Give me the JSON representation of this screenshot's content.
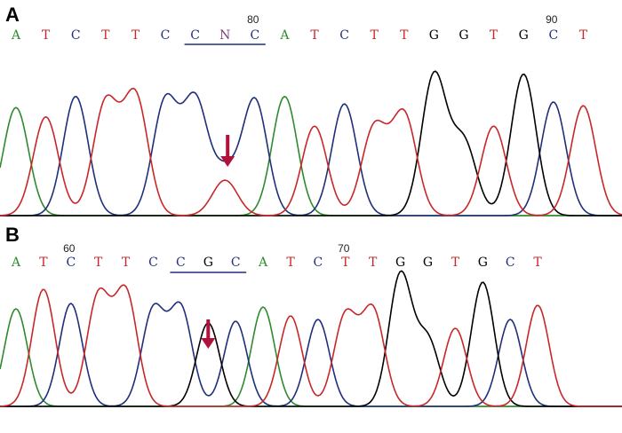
{
  "colors": {
    "A": "#2f8a2f",
    "C": "#1f2f7a",
    "G": "#000000",
    "T": "#c8272a",
    "N": "#7b3f7b",
    "arrow": "#b0123c",
    "baseline": "#2f8a2f"
  },
  "chart_data": [
    {
      "type": "line",
      "panel_label": "A",
      "sequence": [
        "A",
        "T",
        "C",
        "T",
        "T",
        "C",
        "C",
        "N",
        "C",
        "A",
        "T",
        "C",
        "T",
        "T",
        "G",
        "G",
        "T",
        "G",
        "C",
        "T"
      ],
      "position_labels": [
        {
          "index": 8,
          "text": "80"
        },
        {
          "index": 18,
          "text": "90"
        }
      ],
      "underline": [
        6,
        8
      ],
      "arrow_index": 7,
      "peaks": [
        {
          "base": "A",
          "x": 0,
          "h": 0.58
        },
        {
          "base": "T",
          "x": 1,
          "h": 0.53
        },
        {
          "base": "C",
          "x": 2,
          "h": 0.64
        },
        {
          "base": "T",
          "x": 3,
          "h": 0.6
        },
        {
          "base": "T",
          "x": 4,
          "h": 0.64
        },
        {
          "base": "C",
          "x": 5,
          "h": 0.61
        },
        {
          "base": "C",
          "x": 6,
          "h": 0.61
        },
        {
          "base": "C",
          "x": 7,
          "h": 0.22
        },
        {
          "base": "T",
          "x": 7,
          "h": 0.19
        },
        {
          "base": "C",
          "x": 8,
          "h": 0.62
        },
        {
          "base": "A",
          "x": 9,
          "h": 0.64
        },
        {
          "base": "T",
          "x": 10,
          "h": 0.48
        },
        {
          "base": "C",
          "x": 11,
          "h": 0.6
        },
        {
          "base": "T",
          "x": 12,
          "h": 0.47
        },
        {
          "base": "T",
          "x": 13,
          "h": 0.54
        },
        {
          "base": "G",
          "x": 14,
          "h": 0.75
        },
        {
          "base": "G",
          "x": 15,
          "h": 0.39
        },
        {
          "base": "T",
          "x": 16,
          "h": 0.48
        },
        {
          "base": "G",
          "x": 17,
          "h": 0.76
        },
        {
          "base": "C",
          "x": 18,
          "h": 0.61
        },
        {
          "base": "T",
          "x": 19,
          "h": 0.59
        }
      ]
    },
    {
      "type": "line",
      "panel_label": "B",
      "sequence": [
        "A",
        "T",
        "C",
        "T",
        "T",
        "C",
        "C",
        "G",
        "C",
        "A",
        "T",
        "C",
        "T",
        "T",
        "G",
        "G",
        "T",
        "G",
        "C",
        "T"
      ],
      "position_labels": [
        {
          "index": 2,
          "text": "60"
        },
        {
          "index": 12,
          "text": "70"
        }
      ],
      "underline": [
        6,
        8
      ],
      "arrow_index": 7,
      "peaks": [
        {
          "base": "A",
          "x": 0,
          "h": 0.55
        },
        {
          "base": "T",
          "x": 1,
          "h": 0.66
        },
        {
          "base": "C",
          "x": 2,
          "h": 0.58
        },
        {
          "base": "T",
          "x": 3,
          "h": 0.62
        },
        {
          "base": "T",
          "x": 4,
          "h": 0.64
        },
        {
          "base": "C",
          "x": 5,
          "h": 0.54
        },
        {
          "base": "C",
          "x": 6,
          "h": 0.55
        },
        {
          "base": "G",
          "x": 7,
          "h": 0.47
        },
        {
          "base": "C",
          "x": 8,
          "h": 0.48
        },
        {
          "base": "A",
          "x": 9,
          "h": 0.56
        },
        {
          "base": "T",
          "x": 10,
          "h": 0.51
        },
        {
          "base": "C",
          "x": 11,
          "h": 0.49
        },
        {
          "base": "T",
          "x": 12,
          "h": 0.51
        },
        {
          "base": "T",
          "x": 13,
          "h": 0.54
        },
        {
          "base": "G",
          "x": 14,
          "h": 0.74
        },
        {
          "base": "G",
          "x": 15,
          "h": 0.37
        },
        {
          "base": "T",
          "x": 16,
          "h": 0.44
        },
        {
          "base": "G",
          "x": 17,
          "h": 0.7
        },
        {
          "base": "C",
          "x": 18,
          "h": 0.49
        },
        {
          "base": "T",
          "x": 19,
          "h": 0.57
        }
      ]
    }
  ]
}
